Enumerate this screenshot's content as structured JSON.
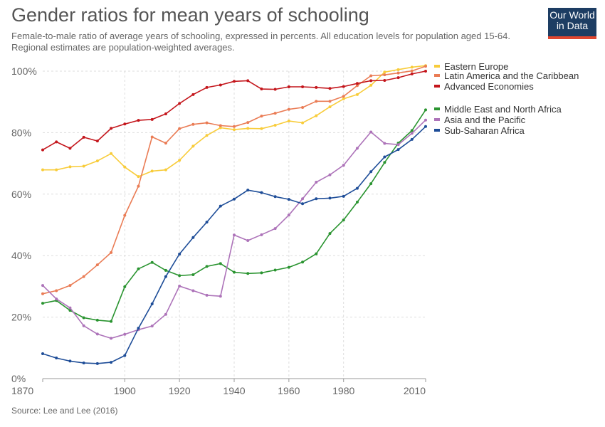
{
  "header": {
    "title": "Gender ratios for mean years of schooling",
    "subtitle": "Female-to-male ratio of average years of schooling, expressed in percents. All education levels for population aged 15-64. Regional estimates are population-weighted averages.",
    "logo_line1": "Our World",
    "logo_line2": "in Data"
  },
  "footer": {
    "source": "Source: Lee and Lee (2016)"
  },
  "colors": {
    "Eastern Europe": "#f8cc3a",
    "Latin America and the Caribbean": "#ea7c55",
    "Advanced Economies": "#c4161c",
    "Middle East and North Africa": "#2a9430",
    "Asia and the Pacific": "#ad73b9",
    "Sub-Saharan Africa": "#1e4d98"
  },
  "chart_data": {
    "type": "line",
    "title": "Gender ratios for mean years of schooling",
    "xlabel": "",
    "ylabel": "",
    "xlim": [
      1870,
      2010
    ],
    "ylim": [
      0,
      100
    ],
    "y_ticks": [
      0,
      20,
      40,
      60,
      80,
      100
    ],
    "y_tick_labels": [
      "0%",
      "20%",
      "40%",
      "60%",
      "80%",
      "100%"
    ],
    "x_ticks": [
      1870,
      1900,
      1920,
      1940,
      1960,
      1980,
      2010
    ],
    "grid": true,
    "legend_position": "right",
    "x": [
      1870,
      1875,
      1880,
      1885,
      1890,
      1895,
      1900,
      1905,
      1910,
      1915,
      1920,
      1925,
      1930,
      1935,
      1940,
      1945,
      1950,
      1955,
      1960,
      1965,
      1970,
      1975,
      1980,
      1985,
      1990,
      1995,
      2000,
      2005,
      2010
    ],
    "series": [
      {
        "name": "Eastern Europe",
        "values": [
          67.9,
          67.9,
          68.9,
          69.1,
          70.8,
          73.2,
          68.8,
          65.7,
          67.5,
          67.9,
          71.0,
          75.6,
          79.1,
          81.6,
          81.0,
          81.4,
          81.3,
          82.4,
          83.8,
          83.2,
          85.5,
          88.4,
          91.0,
          92.4,
          95.4,
          99.7,
          100.5,
          101.3,
          101.8
        ]
      },
      {
        "name": "Latin America and the Caribbean",
        "values": [
          27.6,
          28.6,
          30.3,
          33.2,
          37.0,
          41.0,
          53.1,
          62.6,
          78.6,
          76.6,
          81.3,
          82.7,
          83.2,
          82.3,
          82.0,
          83.3,
          85.4,
          86.3,
          87.6,
          88.2,
          90.2,
          90.2,
          91.8,
          95.3,
          98.5,
          98.8,
          99.4,
          100.1,
          101.6
        ]
      },
      {
        "name": "Advanced Economies",
        "values": [
          74.4,
          77.0,
          74.9,
          78.5,
          77.3,
          81.4,
          82.8,
          84.0,
          84.3,
          86.1,
          89.5,
          92.4,
          94.7,
          95.5,
          96.7,
          96.9,
          94.2,
          94.1,
          94.9,
          94.9,
          94.7,
          94.4,
          95.0,
          96.0,
          96.9,
          97.0,
          97.9,
          99.1,
          100.0
        ]
      },
      {
        "name": "Middle East and North Africa",
        "values": [
          24.5,
          25.4,
          22.2,
          19.8,
          19.0,
          18.6,
          29.9,
          35.7,
          37.8,
          35.2,
          33.5,
          33.8,
          36.5,
          37.4,
          34.6,
          34.2,
          34.4,
          35.3,
          36.2,
          37.9,
          40.6,
          47.2,
          51.6,
          57.4,
          63.4,
          70.3,
          76.6,
          80.7,
          87.4
        ]
      },
      {
        "name": "Asia and the Pacific",
        "values": [
          30.3,
          25.9,
          23.0,
          17.2,
          14.5,
          13.1,
          14.4,
          15.9,
          17.1,
          20.9,
          30.1,
          28.6,
          27.1,
          26.8,
          46.7,
          44.9,
          46.8,
          48.8,
          53.2,
          58.5,
          63.9,
          66.3,
          69.4,
          74.9,
          80.2,
          76.5,
          76.1,
          79.8,
          84.1
        ]
      },
      {
        "name": "Sub-Saharan Africa",
        "values": [
          8.1,
          6.7,
          5.7,
          5.1,
          4.9,
          5.3,
          7.5,
          16.4,
          24.3,
          33.2,
          40.5,
          45.9,
          50.9,
          56.1,
          58.4,
          61.3,
          60.5,
          59.2,
          58.3,
          56.9,
          58.5,
          58.7,
          59.3,
          61.9,
          67.3,
          72.1,
          74.5,
          77.8,
          82.0
        ]
      }
    ]
  },
  "legend_order": [
    "Eastern Europe",
    "Latin America and the Caribbean",
    "Advanced Economies",
    "Middle East and North Africa",
    "Asia and the Pacific",
    "Sub-Saharan Africa"
  ]
}
